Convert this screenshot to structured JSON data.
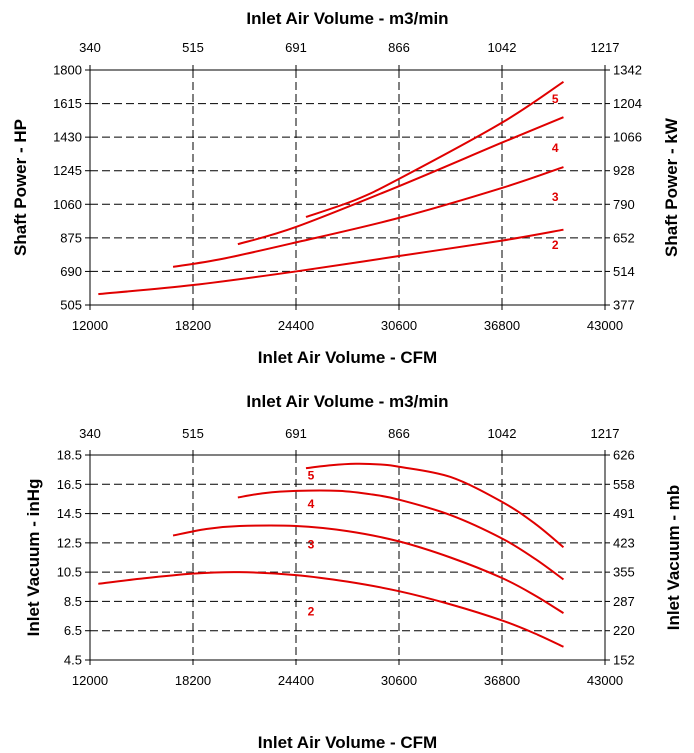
{
  "chart_data": [
    {
      "type": "line",
      "title": "",
      "xlabel": "Inlet Air Volume - CFM",
      "x2label": "Inlet Air Volume - m3/min",
      "ylabel": "Shaft Power - HP",
      "y2label": "Shaft Power - kW",
      "xlim": [
        12000,
        43000
      ],
      "ylim": [
        505,
        1800
      ],
      "x_ticks": [
        "12000",
        "18200",
        "24400",
        "30600",
        "36800",
        "43000"
      ],
      "x2_ticks": [
        "340",
        "515",
        "691",
        "866",
        "1042",
        "1217"
      ],
      "y_ticks": [
        "505",
        "690",
        "875",
        "1060",
        "1245",
        "1430",
        "1615",
        "1800"
      ],
      "y2_ticks": [
        "377",
        "514",
        "652",
        "790",
        "928",
        "1066",
        "1204",
        "1342"
      ],
      "grid": true,
      "line_color": "#e00000",
      "series": [
        {
          "name": "2",
          "x": [
            12500,
            18200,
            24400,
            30600,
            36800,
            40500
          ],
          "y": [
            565,
            615,
            690,
            775,
            860,
            920
          ]
        },
        {
          "name": "3",
          "x": [
            17000,
            20000,
            24400,
            30600,
            36800,
            40500
          ],
          "y": [
            715,
            760,
            850,
            985,
            1150,
            1265
          ]
        },
        {
          "name": "4",
          "x": [
            20900,
            24400,
            30600,
            36800,
            40500
          ],
          "y": [
            840,
            935,
            1160,
            1400,
            1540
          ]
        },
        {
          "name": "5",
          "x": [
            25000,
            28000,
            30600,
            36800,
            40500
          ],
          "y": [
            990,
            1085,
            1200,
            1510,
            1735
          ]
        }
      ],
      "curve_labels": [
        {
          "text": "2",
          "x": 40000,
          "y": 835
        },
        {
          "text": "3",
          "x": 40000,
          "y": 1100
        },
        {
          "text": "4",
          "x": 40000,
          "y": 1370
        },
        {
          "text": "5",
          "x": 40000,
          "y": 1640
        }
      ]
    },
    {
      "type": "line",
      "title": "",
      "xlabel": "Inlet Air Volume - CFM",
      "x2label": "Inlet Air Volume - m3/min",
      "ylabel": "Inlet Vacuum - inHg",
      "y2label": "Inlet Vacuum - mb",
      "xlim": [
        12000,
        43000
      ],
      "ylim": [
        4.5,
        18.5
      ],
      "x_ticks": [
        "12000",
        "18200",
        "24400",
        "30600",
        "36800",
        "43000"
      ],
      "x2_ticks": [
        "340",
        "515",
        "691",
        "866",
        "1042",
        "1217"
      ],
      "y_ticks": [
        "4.5",
        "6.5",
        "8.5",
        "10.5",
        "12.5",
        "14.5",
        "16.5",
        "18.5"
      ],
      "y2_ticks": [
        "152",
        "220",
        "287",
        "355",
        "423",
        "491",
        "558",
        "626"
      ],
      "grid": true,
      "line_color": "#e00000",
      "series": [
        {
          "name": "2",
          "x": [
            12500,
            15000,
            18200,
            21000,
            24400,
            27500,
            30600,
            33700,
            36800,
            38800,
            40500
          ],
          "y": [
            9.7,
            10.05,
            10.4,
            10.5,
            10.3,
            9.85,
            9.2,
            8.3,
            7.2,
            6.3,
            5.4
          ]
        },
        {
          "name": "3",
          "x": [
            17000,
            19000,
            21000,
            24400,
            27500,
            30600,
            33700,
            36800,
            38800,
            40500
          ],
          "y": [
            13.0,
            13.45,
            13.65,
            13.65,
            13.3,
            12.6,
            11.5,
            10.1,
            8.9,
            7.7
          ]
        },
        {
          "name": "4",
          "x": [
            20900,
            22500,
            24400,
            27000,
            29000,
            30600,
            33700,
            36800,
            38800,
            40500
          ],
          "y": [
            15.6,
            15.9,
            16.05,
            16.05,
            15.8,
            15.45,
            14.4,
            12.8,
            11.4,
            10.0
          ]
        },
        {
          "name": "5",
          "x": [
            25000,
            26500,
            28000,
            29500,
            30600,
            33700,
            36800,
            38800,
            40500
          ],
          "y": [
            17.6,
            17.8,
            17.9,
            17.85,
            17.7,
            17.0,
            15.3,
            13.8,
            12.2
          ]
        }
      ],
      "curve_labels": [
        {
          "text": "2",
          "x": 25300,
          "y": 7.8
        },
        {
          "text": "3",
          "x": 25300,
          "y": 12.4
        },
        {
          "text": "4",
          "x": 25300,
          "y": 15.15
        },
        {
          "text": "5",
          "x": 25300,
          "y": 17.1
        }
      ]
    }
  ]
}
